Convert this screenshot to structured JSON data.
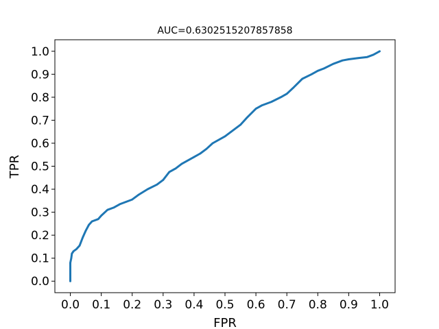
{
  "chart_data": {
    "type": "line",
    "title": "AUC=0.6302515207857858",
    "xlabel": "FPR",
    "ylabel": "TPR",
    "xlim": [
      -0.05,
      1.05
    ],
    "ylim": [
      -0.05,
      1.05
    ],
    "x_ticks": [
      "0.0",
      "0.1",
      "0.2",
      "0.3",
      "0.4",
      "0.5",
      "0.6",
      "0.7",
      "0.8",
      "0.9",
      "1.0"
    ],
    "y_ticks": [
      "0.0",
      "0.1",
      "0.2",
      "0.3",
      "0.4",
      "0.5",
      "0.6",
      "0.7",
      "0.8",
      "0.9",
      "1.0"
    ],
    "grid": false,
    "legend": "none",
    "series": [
      {
        "color": "#1f77b4",
        "x": [
          0.0,
          0.0,
          0.0,
          0.003,
          0.005,
          0.01,
          0.02,
          0.03,
          0.04,
          0.05,
          0.06,
          0.07,
          0.09,
          0.1,
          0.12,
          0.14,
          0.16,
          0.18,
          0.2,
          0.22,
          0.25,
          0.28,
          0.3,
          0.32,
          0.34,
          0.36,
          0.4,
          0.42,
          0.44,
          0.46,
          0.5,
          0.52,
          0.55,
          0.57,
          0.6,
          0.62,
          0.65,
          0.68,
          0.7,
          0.72,
          0.75,
          0.78,
          0.8,
          0.82,
          0.85,
          0.88,
          0.9,
          0.93,
          0.96,
          0.98,
          1.0
        ],
        "y": [
          0.0,
          0.03,
          0.08,
          0.1,
          0.12,
          0.13,
          0.14,
          0.155,
          0.19,
          0.22,
          0.245,
          0.26,
          0.27,
          0.285,
          0.31,
          0.32,
          0.335,
          0.345,
          0.355,
          0.375,
          0.4,
          0.42,
          0.44,
          0.475,
          0.49,
          0.51,
          0.54,
          0.555,
          0.575,
          0.6,
          0.63,
          0.65,
          0.68,
          0.71,
          0.75,
          0.765,
          0.78,
          0.8,
          0.815,
          0.84,
          0.88,
          0.9,
          0.915,
          0.925,
          0.945,
          0.96,
          0.965,
          0.97,
          0.975,
          0.985,
          1.0
        ]
      }
    ]
  }
}
